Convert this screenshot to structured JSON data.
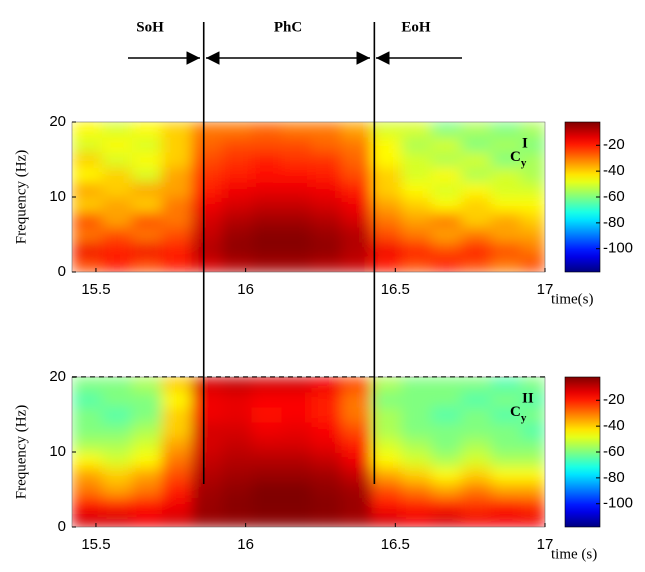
{
  "phases": {
    "labels": [
      "SoH",
      "PhC",
      "EoH"
    ],
    "boundaries": [
      15.86,
      16.43
    ]
  },
  "chart_data": [
    {
      "type": "heatmap",
      "ylabel": "Frequency (Hz)",
      "xlabel": "time(s)",
      "annotation": {
        "text": "C",
        "sub": "y",
        "sup": "I"
      },
      "xlim": [
        15.42,
        17
      ],
      "ylim": [
        0,
        20
      ],
      "xticks": [
        15.5,
        16,
        16.5,
        17
      ],
      "yticks": [
        0,
        10,
        20
      ],
      "x": [
        15.47,
        15.57,
        15.67,
        15.77,
        15.87,
        15.97,
        16.07,
        16.17,
        16.27,
        16.37,
        16.47,
        16.57,
        16.67,
        16.77,
        16.87,
        16.97
      ],
      "y": [
        1,
        3,
        5,
        7,
        9,
        11,
        13,
        15,
        17,
        19
      ],
      "z": [
        [
          -25,
          -20,
          -25,
          -20,
          -12,
          -8,
          -6,
          -6,
          -8,
          -10,
          -20,
          -25,
          -20,
          -25,
          -30,
          -25
        ],
        [
          -15,
          -20,
          -15,
          -20,
          -8,
          -4,
          -3,
          -3,
          -4,
          -8,
          -15,
          -20,
          -25,
          -20,
          -25,
          -30
        ],
        [
          -30,
          -25,
          -30,
          -25,
          -10,
          -5,
          -3,
          -3,
          -5,
          -8,
          -25,
          -30,
          -35,
          -30,
          -35,
          -35
        ],
        [
          -25,
          -35,
          -25,
          -30,
          -12,
          -8,
          -6,
          -6,
          -8,
          -12,
          -30,
          -35,
          -30,
          -40,
          -35,
          -40
        ],
        [
          -40,
          -35,
          -40,
          -30,
          -15,
          -12,
          -10,
          -10,
          -12,
          -15,
          -35,
          -40,
          -45,
          -40,
          -45,
          -45
        ],
        [
          -35,
          -40,
          -35,
          -35,
          -20,
          -15,
          -14,
          -14,
          -15,
          -20,
          -40,
          -45,
          -50,
          -45,
          -50,
          -50
        ],
        [
          -45,
          -40,
          -50,
          -35,
          -22,
          -20,
          -18,
          -18,
          -20,
          -25,
          -40,
          -50,
          -45,
          -55,
          -50,
          -55
        ],
        [
          -40,
          -50,
          -45,
          -40,
          -25,
          -22,
          -20,
          -22,
          -22,
          -28,
          -45,
          -50,
          -55,
          -50,
          -60,
          -55
        ],
        [
          -50,
          -45,
          -50,
          -40,
          -28,
          -25,
          -25,
          -25,
          -28,
          -30,
          -45,
          -55,
          -50,
          -60,
          -55,
          -60
        ],
        [
          -45,
          -50,
          -45,
          -40,
          -30,
          -30,
          -28,
          -30,
          -30,
          -35,
          -50,
          -50,
          -60,
          -55,
          -60,
          -55
        ]
      ],
      "colorbar": {
        "zlim": [
          -118,
          -2
        ],
        "ticks": [
          -20,
          -40,
          -60,
          -80,
          -100
        ]
      }
    },
    {
      "type": "heatmap",
      "ylabel": "Frequency (Hz)",
      "xlabel": "time (s)",
      "annotation": {
        "text": "C",
        "sub": "y",
        "sup": "II"
      },
      "xlim": [
        15.42,
        17
      ],
      "ylim": [
        0,
        20
      ],
      "xticks": [
        15.5,
        16,
        16.5,
        17
      ],
      "yticks": [
        0,
        10,
        20
      ],
      "x": [
        15.47,
        15.57,
        15.67,
        15.77,
        15.87,
        15.97,
        16.07,
        16.17,
        16.27,
        16.37,
        16.47,
        16.57,
        16.67,
        16.77,
        16.87,
        16.97
      ],
      "y": [
        1,
        3,
        5,
        7,
        9,
        11,
        13,
        15,
        17,
        19
      ],
      "z": [
        [
          -12,
          -12,
          -15,
          -12,
          -5,
          -4,
          -3,
          -3,
          -4,
          -6,
          -12,
          -15,
          -12,
          -15,
          -15,
          -15
        ],
        [
          -18,
          -20,
          -18,
          -15,
          -5,
          -3,
          -2,
          -2,
          -3,
          -5,
          -18,
          -20,
          -20,
          -22,
          -20,
          -22
        ],
        [
          -30,
          -35,
          -30,
          -20,
          -6,
          -4,
          -2,
          -2,
          -4,
          -6,
          -25,
          -30,
          -35,
          -30,
          -35,
          -35
        ],
        [
          -35,
          -40,
          -35,
          -25,
          -8,
          -6,
          -5,
          -5,
          -6,
          -10,
          -35,
          -40,
          -45,
          -40,
          -45,
          -45
        ],
        [
          -45,
          -50,
          -45,
          -30,
          -10,
          -8,
          -8,
          -8,
          -10,
          -15,
          -45,
          -50,
          -55,
          -50,
          -55,
          -55
        ],
        [
          -55,
          -55,
          -50,
          -35,
          -12,
          -10,
          -12,
          -12,
          -14,
          -20,
          -50,
          -55,
          -60,
          -55,
          -60,
          -60
        ],
        [
          -60,
          -60,
          -55,
          -40,
          -12,
          -12,
          -15,
          -14,
          -16,
          -25,
          -55,
          -60,
          -60,
          -60,
          -60,
          -65
        ],
        [
          -60,
          -65,
          -60,
          -40,
          -15,
          -14,
          -18,
          -16,
          -20,
          -30,
          -55,
          -60,
          -65,
          -60,
          -65,
          -60
        ],
        [
          -65,
          -60,
          -60,
          -45,
          -15,
          -14,
          -16,
          -16,
          -20,
          -30,
          -60,
          -60,
          -60,
          -65,
          -60,
          -65
        ],
        [
          -60,
          -60,
          -55,
          -40,
          -12,
          -10,
          -12,
          -12,
          -15,
          -25,
          -55,
          -60,
          -60,
          -60,
          -65,
          -60
        ]
      ],
      "colorbar": {
        "zlim": [
          -118,
          -2
        ],
        "ticks": [
          -20,
          -40,
          -60,
          -80,
          -100
        ]
      }
    }
  ]
}
